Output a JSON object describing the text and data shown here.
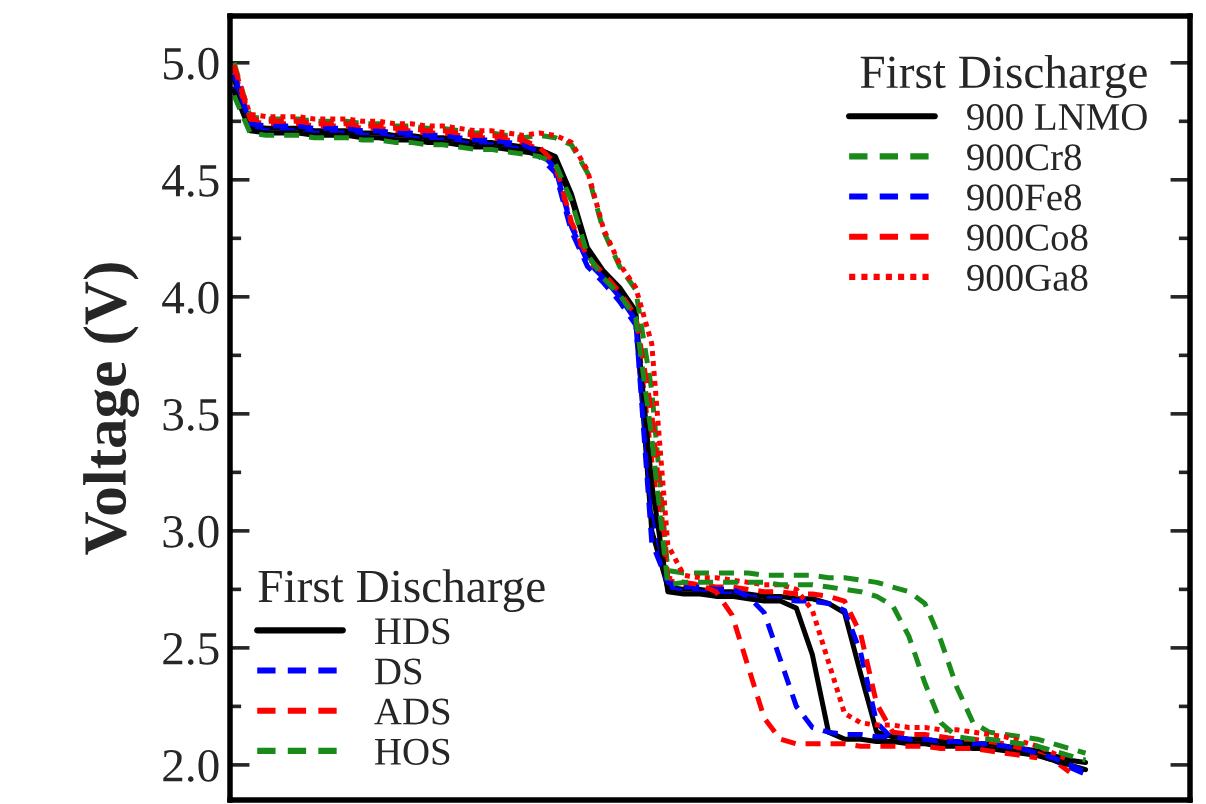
{
  "chart_data": [
    {
      "type": "line",
      "ylabel": "Voltage (V)",
      "legend_title": "First Discharge",
      "legend": "top right",
      "tick_labels": "y",
      "ylim": [
        1.85,
        5.2
      ],
      "yticks": [
        {
          "value": 2.0,
          "label": "2.0"
        },
        {
          "value": 2.25,
          "label": null
        },
        {
          "value": 2.5,
          "label": "2.5"
        },
        {
          "value": 2.75,
          "label": null
        },
        {
          "value": 3.0,
          "label": "3.0"
        },
        {
          "value": 3.25,
          "label": null
        },
        {
          "value": 3.5,
          "label": "3.5"
        },
        {
          "value": 3.75,
          "label": null
        },
        {
          "value": 4.0,
          "label": "4.0"
        },
        {
          "value": 4.25,
          "label": null
        },
        {
          "value": 4.5,
          "label": "4.5"
        },
        {
          "value": 4.75,
          "label": null
        },
        {
          "value": 5.0,
          "label": "5.0"
        }
      ],
      "categories": [
        null,
        null,
        null,
        null,
        null,
        null,
        null,
        null,
        null,
        null,
        null,
        null,
        null,
        null,
        null,
        null,
        null,
        null,
        null,
        null,
        null,
        null,
        null,
        null,
        null,
        null,
        null,
        null,
        null,
        null,
        null,
        null,
        null,
        null,
        null,
        null,
        null,
        null,
        null,
        null,
        null,
        null,
        null,
        null,
        null,
        null,
        null,
        null,
        null,
        null,
        null,
        null,
        null,
        null
      ],
      "series": [
        {
          "name": "900 LNMO",
          "color": "#000000",
          "line_style": "solid",
          "values": [
            4.93,
            4.73,
            4.72,
            4.72,
            4.72,
            4.71,
            4.71,
            4.71,
            4.7,
            4.7,
            4.69,
            4.69,
            4.68,
            4.68,
            4.67,
            4.66,
            4.66,
            4.65,
            4.64,
            4.63,
            4.6,
            4.44,
            4.21,
            4.11,
            4.04,
            3.94,
            3.0,
            2.76,
            2.75,
            2.75,
            2.74,
            2.74,
            2.73,
            2.72,
            2.72,
            2.71,
            2.71,
            2.69,
            2.65,
            2.39,
            2.14,
            2.12,
            2.11,
            2.11,
            2.1,
            2.1,
            2.09,
            2.09,
            2.08,
            2.07,
            2.06,
            2.04,
            2.02,
            2.01
          ]
        },
        {
          "name": "900Cr8",
          "color": "#1a8a1a",
          "line_style": "dashed",
          "values": [
            5.0,
            4.77,
            4.76,
            4.76,
            4.76,
            4.75,
            4.75,
            4.75,
            4.74,
            4.74,
            4.73,
            4.73,
            4.72,
            4.72,
            4.71,
            4.7,
            4.7,
            4.69,
            4.68,
            4.69,
            4.68,
            4.65,
            4.53,
            4.28,
            4.13,
            4.03,
            3.6,
            2.83,
            2.82,
            2.82,
            2.82,
            2.82,
            2.82,
            2.81,
            2.81,
            2.81,
            2.81,
            2.8,
            2.8,
            2.79,
            2.78,
            2.76,
            2.74,
            2.69,
            2.53,
            2.33,
            2.18,
            2.14,
            2.13,
            2.12,
            2.11,
            2.09,
            2.07,
            2.05
          ]
        },
        {
          "name": "900Fe8",
          "color": "#0000ff",
          "line_style": "dashed",
          "values": [
            4.9,
            4.72,
            4.71,
            4.71,
            4.71,
            4.7,
            4.7,
            4.7,
            4.69,
            4.69,
            4.68,
            4.68,
            4.67,
            4.67,
            4.66,
            4.65,
            4.65,
            4.64,
            4.63,
            4.6,
            4.53,
            4.28,
            4.13,
            4.06,
            3.98,
            3.88,
            3.1,
            2.76,
            2.74,
            2.74,
            2.73,
            2.73,
            2.72,
            2.71,
            2.71,
            2.7,
            2.7,
            2.69,
            2.66,
            2.48,
            2.18,
            2.11,
            2.1,
            2.1,
            2.09,
            2.09,
            2.08,
            2.08,
            2.07,
            2.06,
            2.04,
            2.02,
            1.99,
            1.96
          ]
        },
        {
          "name": "900Co8",
          "color": "#ff0000",
          "line_style": "dashed",
          "values": [
            4.97,
            4.75,
            4.74,
            4.74,
            4.74,
            4.73,
            4.73,
            4.73,
            4.72,
            4.72,
            4.71,
            4.71,
            4.7,
            4.7,
            4.69,
            4.68,
            4.68,
            4.67,
            4.66,
            4.63,
            4.56,
            4.31,
            4.16,
            4.09,
            4.01,
            3.91,
            3.3,
            2.79,
            2.77,
            2.77,
            2.76,
            2.76,
            2.75,
            2.74,
            2.74,
            2.73,
            2.73,
            2.72,
            2.7,
            2.56,
            2.26,
            2.14,
            2.13,
            2.13,
            2.12,
            2.11,
            2.11,
            2.1,
            2.09,
            2.07,
            2.05,
            2.02,
            1.97,
            null
          ]
        },
        {
          "name": "900Ga8",
          "color": "#ff0000",
          "line_style": "dotted",
          "values": [
            4.98,
            4.78,
            4.77,
            4.77,
            4.77,
            4.76,
            4.76,
            4.76,
            4.75,
            4.75,
            4.74,
            4.74,
            4.73,
            4.73,
            4.72,
            4.71,
            4.71,
            4.7,
            4.69,
            4.7,
            4.69,
            4.66,
            4.54,
            4.29,
            4.14,
            4.04,
            3.8,
            2.94,
            2.81,
            2.8,
            2.8,
            2.79,
            2.78,
            2.77,
            2.77,
            2.75,
            2.66,
            2.44,
            2.22,
            2.18,
            2.17,
            2.17,
            2.16,
            2.16,
            2.15,
            2.15,
            2.14,
            2.13,
            2.12,
            2.1,
            2.08,
            2.05,
            2.02,
            null
          ]
        }
      ]
    },
    {
      "type": "line",
      "legend_title": "First Discharge",
      "legend": "bottom left",
      "tick_labels": false,
      "ylim": [
        1.85,
        5.2
      ],
      "categories": [
        null,
        null,
        null,
        null,
        null,
        null,
        null,
        null,
        null,
        null,
        null,
        null,
        null,
        null,
        null,
        null,
        null,
        null,
        null,
        null,
        null,
        null,
        null,
        null,
        null,
        null,
        null,
        null,
        null,
        null,
        null,
        null,
        null,
        null,
        null,
        null,
        null,
        null,
        null,
        null,
        null,
        null,
        null,
        null,
        null,
        null,
        null,
        null,
        null,
        null,
        null,
        null,
        null,
        null
      ],
      "series": [
        {
          "name": "HDS",
          "color": "#000000",
          "line_style": "solid",
          "values": [
            4.88,
            4.71,
            4.7,
            4.7,
            4.7,
            4.69,
            4.69,
            4.69,
            4.68,
            4.68,
            4.67,
            4.67,
            4.66,
            4.66,
            4.65,
            4.64,
            4.64,
            4.63,
            4.62,
            4.61,
            4.58,
            4.42,
            4.19,
            4.09,
            4.02,
            3.92,
            3.2,
            2.74,
            2.73,
            2.73,
            2.72,
            2.72,
            2.71,
            2.7,
            2.7,
            2.67,
            2.47,
            2.14,
            2.11,
            2.11,
            2.1,
            2.1,
            2.09,
            2.09,
            2.08,
            2.08,
            2.07,
            2.07,
            2.06,
            2.05,
            2.04,
            2.02,
            2.0,
            1.98
          ]
        },
        {
          "name": "DS",
          "color": "#0000ff",
          "line_style": "dashed",
          "values": [
            4.95,
            4.74,
            4.73,
            4.73,
            4.73,
            4.72,
            4.72,
            4.72,
            4.71,
            4.71,
            4.7,
            4.7,
            4.69,
            4.69,
            4.68,
            4.67,
            4.67,
            4.66,
            4.65,
            4.62,
            4.55,
            4.3,
            4.15,
            4.08,
            4.0,
            3.9,
            2.95,
            2.78,
            2.76,
            2.76,
            2.75,
            2.75,
            2.72,
            2.65,
            2.45,
            2.25,
            2.16,
            2.14,
            2.13,
            2.13,
            2.12,
            2.12,
            2.11,
            2.11,
            2.1,
            2.1,
            2.09,
            2.09,
            2.08,
            2.07,
            2.05,
            2.03,
            2.0,
            1.97
          ]
        },
        {
          "name": "ADS",
          "color": "#ff0000",
          "line_style": "dashed",
          "values": [
            4.99,
            4.76,
            4.75,
            4.75,
            4.75,
            4.74,
            4.74,
            4.74,
            4.73,
            4.73,
            4.72,
            4.72,
            4.71,
            4.71,
            4.7,
            4.69,
            4.69,
            4.68,
            4.67,
            4.64,
            4.57,
            4.32,
            4.17,
            4.1,
            4.02,
            3.92,
            3.5,
            2.8,
            2.78,
            2.77,
            2.74,
            2.64,
            2.42,
            2.2,
            2.11,
            2.09,
            2.09,
            2.09,
            2.09,
            2.08,
            2.08,
            2.08,
            2.08,
            2.08,
            2.07,
            2.07,
            2.07,
            2.06,
            2.05,
            2.04,
            2.03,
            null,
            null,
            null
          ]
        },
        {
          "name": "HOS",
          "color": "#1a8a1a",
          "line_style": "dashed",
          "values": [
            4.86,
            4.7,
            4.69,
            4.69,
            4.69,
            4.68,
            4.68,
            4.68,
            4.67,
            4.67,
            4.66,
            4.66,
            4.65,
            4.65,
            4.64,
            4.63,
            4.63,
            4.62,
            4.61,
            4.6,
            4.57,
            4.41,
            4.18,
            4.08,
            4.01,
            3.91,
            3.4,
            2.77,
            2.78,
            2.78,
            2.78,
            2.78,
            2.78,
            2.78,
            2.77,
            2.77,
            2.77,
            2.76,
            2.75,
            2.74,
            2.72,
            2.68,
            2.55,
            2.35,
            2.18,
            2.12,
            2.11,
            2.11,
            2.1,
            2.09,
            2.08,
            2.06,
            2.04,
            2.02
          ]
        }
      ]
    }
  ]
}
